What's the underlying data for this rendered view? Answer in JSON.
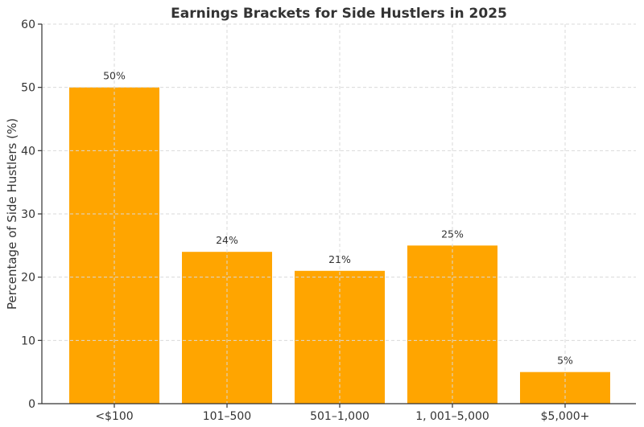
{
  "chart_data": {
    "type": "bar",
    "title": "Earnings Brackets for Side Hustlers in 2025",
    "xlabel": "",
    "ylabel": "Percentage of Side Hustlers (%)",
    "categories": [
      "<$100",
      "101–500",
      "501–1,000",
      "1, 001–5,000",
      "$5,000+"
    ],
    "values": [
      50,
      24,
      21,
      25,
      5
    ],
    "data_labels": [
      "50%",
      "24%",
      "21%",
      "25%",
      "5%"
    ],
    "ylim": [
      0,
      60
    ],
    "yticks": [
      0,
      10,
      20,
      30,
      40,
      50,
      60
    ],
    "bar_color": "#FFA500",
    "grid": true
  }
}
